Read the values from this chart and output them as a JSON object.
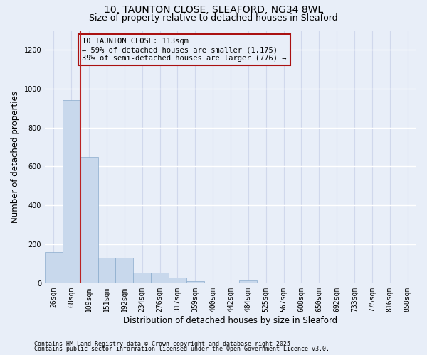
{
  "title_line1": "10, TAUNTON CLOSE, SLEAFORD, NG34 8WL",
  "title_line2": "Size of property relative to detached houses in Sleaford",
  "xlabel": "Distribution of detached houses by size in Sleaford",
  "ylabel": "Number of detached properties",
  "categories": [
    "26sqm",
    "68sqm",
    "109sqm",
    "151sqm",
    "192sqm",
    "234sqm",
    "276sqm",
    "317sqm",
    "359sqm",
    "400sqm",
    "442sqm",
    "484sqm",
    "525sqm",
    "567sqm",
    "608sqm",
    "650sqm",
    "692sqm",
    "733sqm",
    "775sqm",
    "816sqm",
    "858sqm"
  ],
  "values": [
    160,
    940,
    650,
    130,
    130,
    55,
    55,
    30,
    10,
    0,
    0,
    15,
    0,
    0,
    0,
    0,
    0,
    0,
    0,
    0,
    0
  ],
  "bar_color": "#c8d8ec",
  "bar_edge_color": "#8aabcc",
  "vline_color": "#bb2222",
  "annotation_text": "10 TAUNTON CLOSE: 113sqm\n← 59% of detached houses are smaller (1,175)\n39% of semi-detached houses are larger (776) →",
  "annotation_box_color": "#aa1111",
  "ylim": [
    0,
    1300
  ],
  "yticks": [
    0,
    200,
    400,
    600,
    800,
    1000,
    1200
  ],
  "background_color": "#e8eef8",
  "grid_color": "#d0d8e8",
  "footer_line1": "Contains HM Land Registry data © Crown copyright and database right 2025.",
  "footer_line2": "Contains public sector information licensed under the Open Government Licence v3.0.",
  "title_fontsize": 10,
  "subtitle_fontsize": 9,
  "tick_fontsize": 7,
  "label_fontsize": 8.5,
  "footer_fontsize": 6,
  "annot_fontsize": 7.5
}
